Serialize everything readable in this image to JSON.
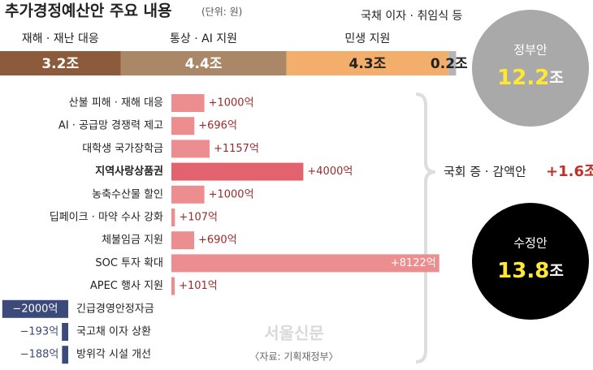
{
  "title": "추가경정예산안 주요 내용",
  "unit": "(단위: 원)",
  "chart_data": [
    {
      "type": "stacked-bar",
      "categories": [
        "재해 · 재난 대응",
        "통상 · AI 지원",
        "민생 지원",
        "국채 이자 · 취임식 등"
      ],
      "values": [
        3.2,
        4.4,
        4.3,
        0.2
      ],
      "value_labels": [
        "3.2조",
        "4.4조",
        "4.3조",
        "0.2조"
      ],
      "colors": [
        "#8b5b3b",
        "#aa8767",
        "#f4ae6c",
        "#b5b5b5"
      ]
    },
    {
      "type": "bar",
      "categories": [
        "산불 피해 · 재해 대응",
        "AI · 공급망 경쟁력 제고",
        "대학생 국가장학금",
        "지역사랑상품권",
        "농축수산물 할인",
        "딥페이크 · 마약 수사 강화",
        "체불임금 지원",
        "SOC 투자 확대",
        "APEC 행사 지원",
        "긴급경영안정자금",
        "국고채 이자 상환",
        "방위각 시설 개선"
      ],
      "values": [
        1000,
        696,
        1157,
        4000,
        1000,
        107,
        690,
        8122,
        101,
        -2000,
        -193,
        -188
      ],
      "value_labels": [
        "+1000억",
        "+696억",
        "+1157억",
        "+4000억",
        "+1000억",
        "+107억",
        "+690억",
        "+8122억",
        "+101억",
        "−2000억",
        "−193억",
        "−188억"
      ],
      "color": "#ec8e8f",
      "highlight_color": "#e2636e",
      "highlight_index": 3,
      "negative_color": "#3b4a7a"
    }
  ],
  "summary": {
    "government": {
      "label": "정부안",
      "amount": "12.2",
      "unit": "조"
    },
    "adjustment": {
      "label": "국회 증 · 감액안",
      "amount": "+1.6조"
    },
    "revised": {
      "label": "수정안",
      "amount": "13.8",
      "unit": "조"
    }
  },
  "watermark": "서울신문",
  "source": "〈자료: 기획재정부〉"
}
